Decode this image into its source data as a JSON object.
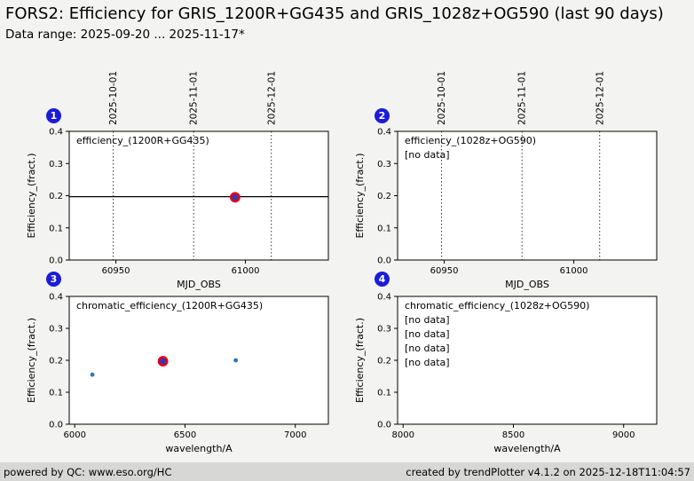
{
  "header": {
    "title": "FORS2: Efficiency for GRIS_1200R+GG435 and GRIS_1028z+OG590 (last 90 days)",
    "subtitle": "Data range: 2025-09-20 ... 2025-11-17*"
  },
  "footer": {
    "left": "powered by QC: www.eso.org/HC",
    "right": "created by trendPlotter v4.1.2 on 2025-12-18T11:04:57"
  },
  "plots": {
    "badges": [
      "1",
      "2",
      "3",
      "4"
    ]
  },
  "style": {
    "badge_color": "#1c1cd8",
    "point_color": "#3076b4",
    "highlight_fill_color": "#2a3cb8",
    "highlight_ring_color": "#e1001c",
    "grid_line_color": "#000000"
  },
  "chart_data": [
    {
      "type": "scatter",
      "title": "efficiency_(1200R+GG435)",
      "xlabel": "MJD_OBS",
      "ylabel": "Efficiency_(fract.)",
      "xlim": [
        60932,
        61032
      ],
      "ylim": [
        0,
        0.4
      ],
      "xticks": [
        60950,
        61000
      ],
      "xtick_labels": [
        "60950",
        "61000"
      ],
      "yticks": [
        0,
        0.1,
        0.2,
        0.3,
        0.4
      ],
      "ytick_labels": [
        "0.0",
        "0.1",
        "0.2",
        "0.3",
        "0.4"
      ],
      "top_axis_lines": [
        {
          "label": "2025-10-01",
          "x": 60949
        },
        {
          "label": "2025-11-01",
          "x": 60980
        },
        {
          "label": "2025-12-01",
          "x": 61010
        }
      ],
      "hlines": [
        0.197
      ],
      "points": [
        {
          "x": 60996,
          "y": 0.195,
          "style": "highlight"
        }
      ],
      "annotations": []
    },
    {
      "type": "scatter",
      "title": "efficiency_(1028z+OG590)",
      "xlabel": "MJD_OBS",
      "ylabel": "Efficiency_(fract.)",
      "xlim": [
        60932,
        61032
      ],
      "ylim": [
        0,
        0.4
      ],
      "xticks": [
        60950,
        61000
      ],
      "xtick_labels": [
        "60950",
        "61000"
      ],
      "yticks": [
        0,
        0.1,
        0.2,
        0.3,
        0.4
      ],
      "ytick_labels": [
        "0.0",
        "0.1",
        "0.2",
        "0.3",
        "0.4"
      ],
      "top_axis_lines": [
        {
          "label": "2025-10-01",
          "x": 60949
        },
        {
          "label": "2025-11-01",
          "x": 60980
        },
        {
          "label": "2025-12-01",
          "x": 61010
        }
      ],
      "hlines": [],
      "points": [],
      "annotations": [
        {
          "text": "[no data]",
          "color": "#0000ee"
        }
      ]
    },
    {
      "type": "scatter",
      "title": "chromatic_efficiency_(1200R+GG435)",
      "xlabel": "wavelength/A",
      "ylabel": "Efficiency_(fract.)",
      "xlim": [
        5975,
        7150
      ],
      "ylim": [
        0,
        0.4
      ],
      "xticks": [
        6000,
        6500,
        7000
      ],
      "xtick_labels": [
        "6000",
        "6500",
        "7000"
      ],
      "yticks": [
        0,
        0.1,
        0.2,
        0.3,
        0.4
      ],
      "ytick_labels": [
        "0.0",
        "0.1",
        "0.2",
        "0.3",
        "0.4"
      ],
      "top_axis_lines": [],
      "hlines": [],
      "points": [
        {
          "x": 6080,
          "y": 0.155,
          "style": "small"
        },
        {
          "x": 6400,
          "y": 0.197,
          "style": "highlight"
        },
        {
          "x": 6730,
          "y": 0.2,
          "style": "small"
        }
      ],
      "annotations": []
    },
    {
      "type": "scatter",
      "title": "chromatic_efficiency_(1028z+OG590)",
      "xlabel": "wavelength/A",
      "ylabel": "Efficiency_(fract.)",
      "xlim": [
        7975,
        9150
      ],
      "ylim": [
        0,
        0.4
      ],
      "xticks": [
        8000,
        8500,
        9000
      ],
      "xtick_labels": [
        "8000",
        "8500",
        "9000"
      ],
      "yticks": [
        0,
        0.1,
        0.2,
        0.3,
        0.4
      ],
      "ytick_labels": [
        "0.0",
        "0.1",
        "0.2",
        "0.3",
        "0.4"
      ],
      "top_axis_lines": [],
      "hlines": [],
      "points": [],
      "annotations": [
        {
          "text": "[no data]",
          "color": "#0000ee"
        },
        {
          "text": "[no data]",
          "color": "#5533bb"
        },
        {
          "text": "[no data]",
          "color": "#bb22bb"
        },
        {
          "text": "[no data]",
          "color": "#bb22bb"
        }
      ]
    }
  ]
}
